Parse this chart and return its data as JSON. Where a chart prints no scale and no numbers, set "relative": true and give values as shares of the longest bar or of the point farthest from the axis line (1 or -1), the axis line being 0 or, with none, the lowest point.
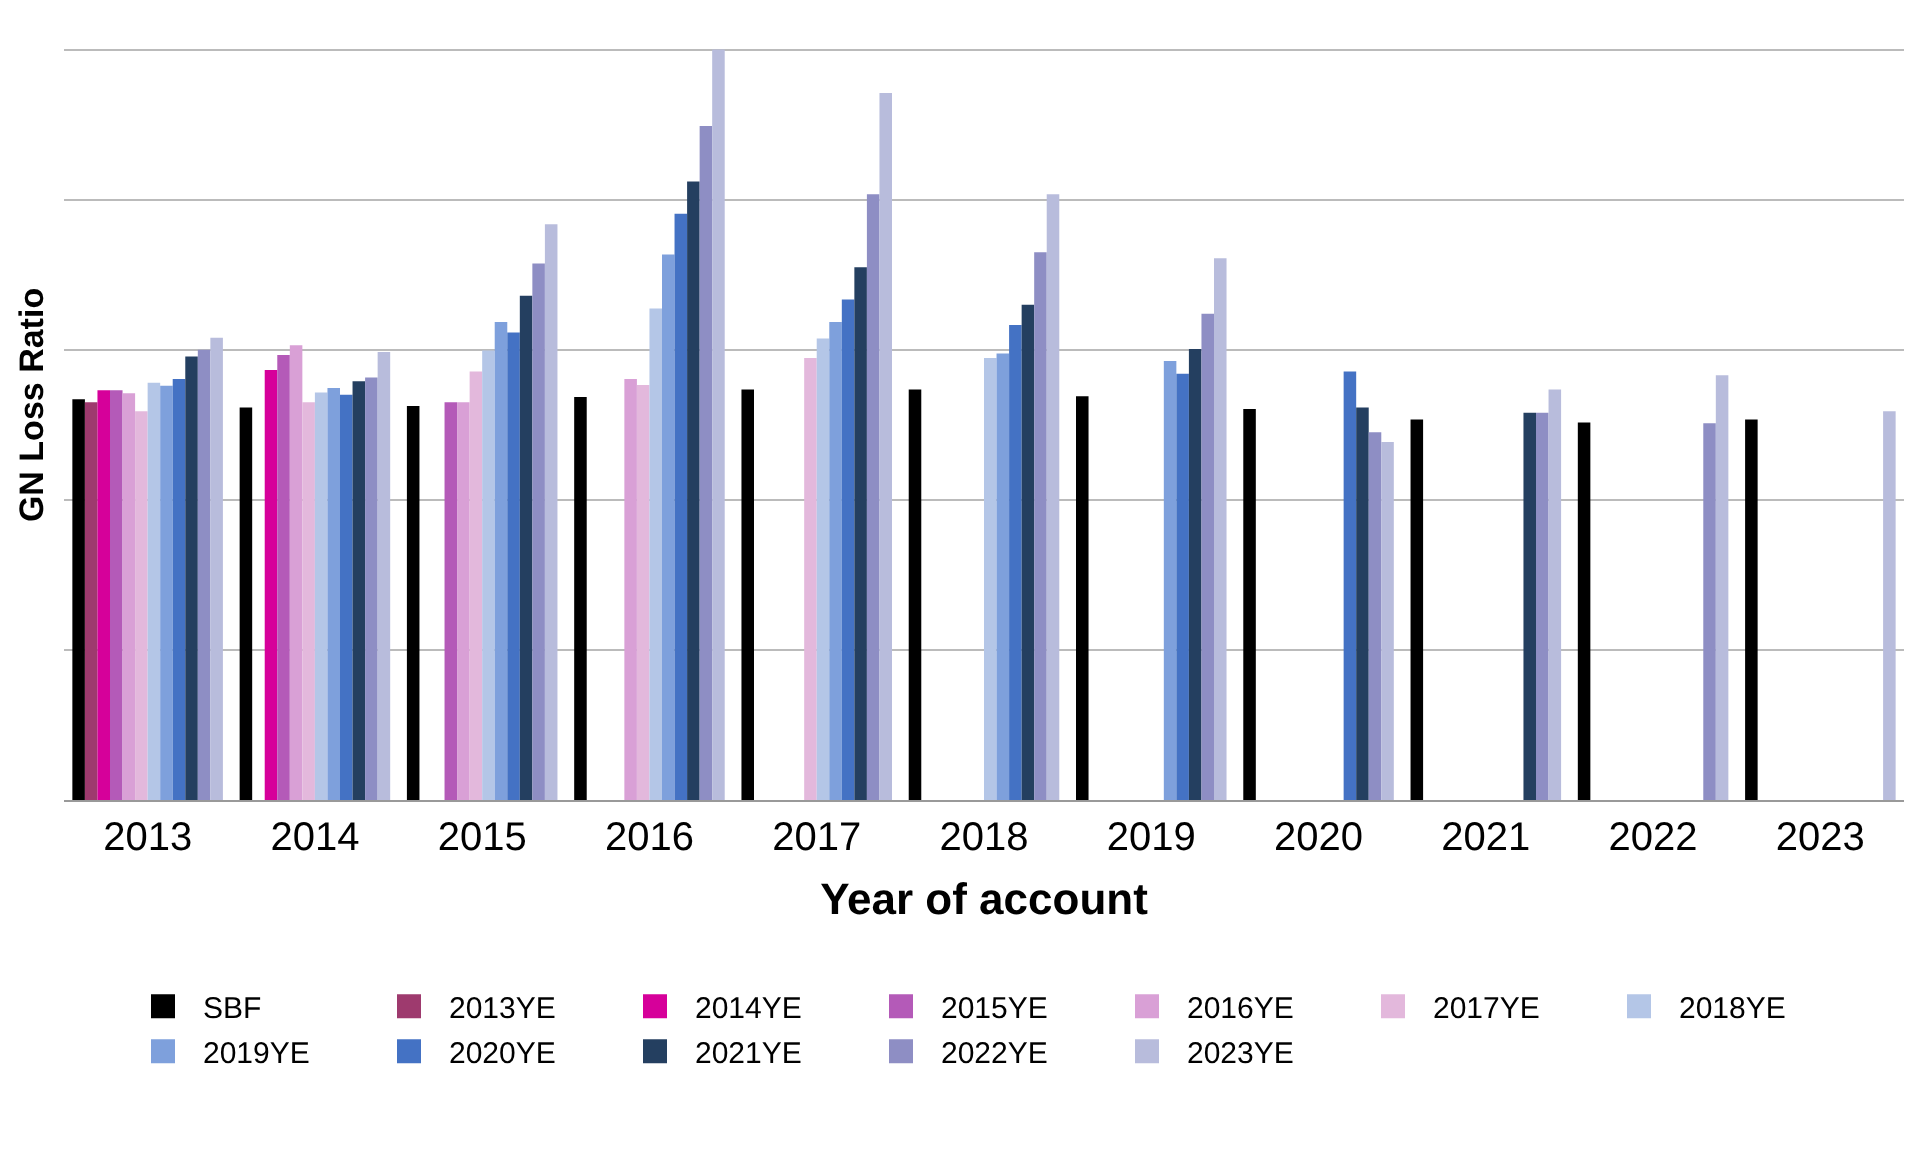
{
  "chart_data": {
    "type": "bar",
    "relative": true,
    "xlabel": "Year of account",
    "ylabel": "GN Loss Ratio",
    "grid": "y",
    "legend": "bottom",
    "categories": [
      "2013",
      "2014",
      "2015",
      "2016",
      "2017",
      "2018",
      "2019",
      "2020",
      "2021",
      "2022",
      "2023"
    ],
    "series": [
      {
        "name": "SBF",
        "color": "#000000",
        "values": [
          0.534,
          0.523,
          0.525,
          0.537,
          0.547,
          0.547,
          0.538,
          0.521,
          0.507,
          0.503,
          0.507
        ]
      },
      {
        "name": "2013YE",
        "color": "#9e3a6e",
        "values": [
          0.53,
          null,
          null,
          null,
          null,
          null,
          null,
          null,
          null,
          null,
          null
        ]
      },
      {
        "name": "2014YE",
        "color": "#d6009a",
        "values": [
          0.546,
          0.573,
          null,
          null,
          null,
          null,
          null,
          null,
          null,
          null,
          null
        ]
      },
      {
        "name": "2015YE",
        "color": "#b45ab8",
        "values": [
          0.546,
          0.593,
          0.53,
          null,
          null,
          null,
          null,
          null,
          null,
          null,
          null
        ]
      },
      {
        "name": "2016YE",
        "color": "#d9a0d6",
        "values": [
          0.542,
          0.606,
          0.53,
          0.561,
          null,
          null,
          null,
          null,
          null,
          null,
          null
        ]
      },
      {
        "name": "2017YE",
        "color": "#e3b8dc",
        "values": [
          0.518,
          0.53,
          0.571,
          0.553,
          0.589,
          null,
          null,
          null,
          null,
          null,
          null
        ]
      },
      {
        "name": "2018YE",
        "color": "#b4c6e7",
        "values": [
          0.556,
          0.543,
          0.599,
          0.655,
          0.615,
          0.589,
          null,
          null,
          null,
          null,
          null
        ]
      },
      {
        "name": "2019YE",
        "color": "#7ea0dc",
        "values": [
          0.552,
          0.549,
          0.637,
          0.727,
          0.637,
          0.595,
          0.585,
          null,
          null,
          null,
          null
        ]
      },
      {
        "name": "2020YE",
        "color": "#4472c4",
        "values": [
          0.561,
          0.54,
          0.623,
          0.781,
          0.667,
          0.633,
          0.568,
          0.571,
          null,
          null,
          null
        ]
      },
      {
        "name": "2021YE",
        "color": "#243f60",
        "values": [
          0.591,
          0.558,
          0.672,
          0.824,
          0.71,
          0.66,
          0.601,
          0.523,
          0.516,
          null,
          null
        ]
      },
      {
        "name": "2022YE",
        "color": "#8e8ec4",
        "values": [
          0.6,
          0.563,
          0.715,
          0.898,
          0.807,
          0.73,
          0.648,
          0.49,
          0.516,
          0.502,
          null
        ]
      },
      {
        "name": "2023YE",
        "color": "#b8bcdc",
        "values": [
          0.616,
          0.597,
          0.767,
          1,
          0.942,
          0.807,
          0.722,
          0.477,
          0.547,
          0.566,
          0.518
        ]
      }
    ]
  }
}
